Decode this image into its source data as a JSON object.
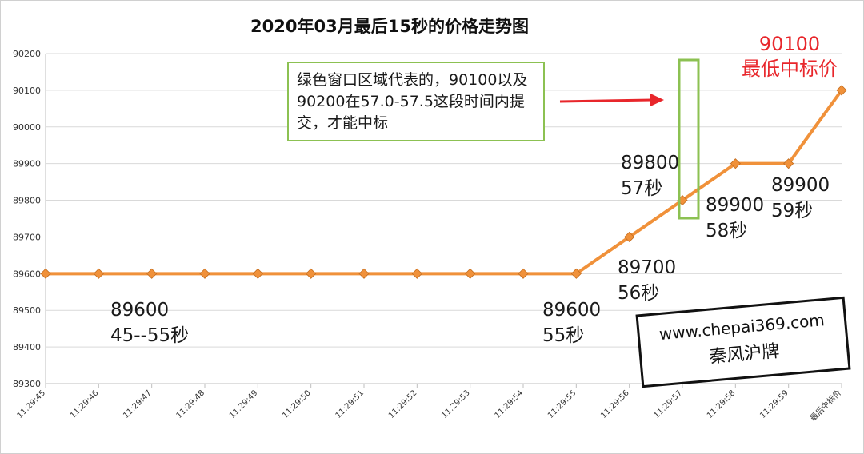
{
  "chart_data": {
    "type": "line",
    "title": "2020年03月最后15秒的价格走势图",
    "xlabel": "",
    "ylabel": "",
    "categories": [
      "11:29:45",
      "11:29:46",
      "11:29:47",
      "11:29:48",
      "11:29:49",
      "11:29:50",
      "11:29:51",
      "11:29:52",
      "11:29:53",
      "11:29:54",
      "11:29:55",
      "11:29:56",
      "11:29:57",
      "11:29:58",
      "11:29:59",
      "最后中标价"
    ],
    "series": [
      {
        "values": [
          89600,
          89600,
          89600,
          89600,
          89600,
          89600,
          89600,
          89600,
          89600,
          89600,
          89600,
          89700,
          89800,
          89900,
          89900,
          90100
        ]
      }
    ],
    "ylim": [
      89300,
      90200
    ],
    "yticks": [
      89300,
      89400,
      89500,
      89600,
      89700,
      89800,
      89900,
      90000,
      90100,
      90200
    ],
    "grid": true,
    "line_color": "#f0913a",
    "marker_color": "#f0913a",
    "annotations": [
      {
        "id": "a1",
        "lines": "89600\n45--55秒"
      },
      {
        "id": "a2",
        "lines": "89600\n55秒"
      },
      {
        "id": "a3",
        "lines": "89700\n56秒"
      },
      {
        "id": "a4",
        "lines": "89800\n57秒"
      },
      {
        "id": "a5",
        "lines": "89900\n58秒"
      },
      {
        "id": "a6",
        "lines": "89900\n59秒"
      },
      {
        "id": "a7",
        "lines": "90100\n最低中标价"
      }
    ],
    "callout": "绿色窗口区域代表的，90100以及90200在57.0-57.5这段时间内提交，才能中标",
    "window_color": "#8cc152",
    "arrow_color": "#e8262b"
  },
  "watermark": {
    "line1": "www.chepai369.com",
    "line2": "秦风沪牌"
  }
}
